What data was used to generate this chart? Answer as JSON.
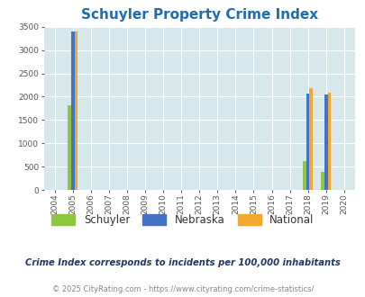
{
  "title": "Schuyler Property Crime Index",
  "years": [
    2004,
    2005,
    2006,
    2007,
    2008,
    2009,
    2010,
    2011,
    2012,
    2013,
    2014,
    2015,
    2016,
    2017,
    2018,
    2019,
    2020
  ],
  "schuyler": [
    0,
    1820,
    0,
    0,
    0,
    0,
    0,
    0,
    0,
    0,
    0,
    0,
    0,
    0,
    620,
    390,
    0
  ],
  "nebraska": [
    0,
    3400,
    0,
    0,
    0,
    0,
    0,
    0,
    0,
    0,
    0,
    0,
    0,
    0,
    2060,
    2050,
    0
  ],
  "national": [
    0,
    3400,
    0,
    0,
    0,
    0,
    0,
    0,
    0,
    0,
    0,
    0,
    0,
    0,
    2180,
    2080,
    0
  ],
  "schuyler_color": "#8DC63F",
  "nebraska_color": "#4472C4",
  "national_color": "#F0A830",
  "bg_color": "#D6E8EC",
  "title_color": "#1F6CB0",
  "ylim": [
    0,
    3500
  ],
  "yticks": [
    0,
    500,
    1000,
    1500,
    2000,
    2500,
    3000,
    3500
  ],
  "bar_width": 0.18,
  "footnote1": "Crime Index corresponds to incidents per 100,000 inhabitants",
  "footnote2": "© 2025 CityRating.com - https://www.cityrating.com/crime-statistics/",
  "footnote1_color": "#1F3864",
  "footnote2_color": "#888888"
}
